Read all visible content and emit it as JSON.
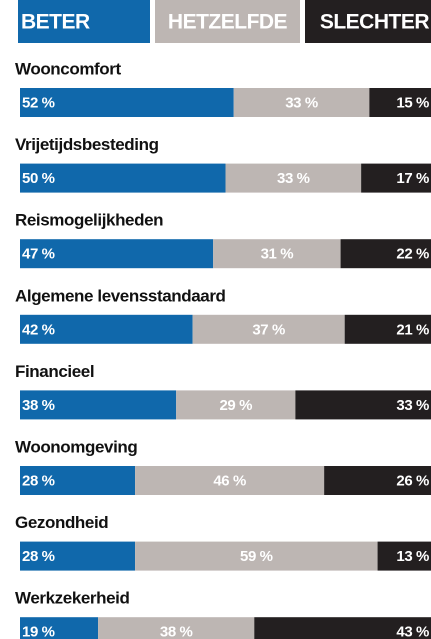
{
  "chart_data": {
    "type": "bar",
    "orientation": "horizontal",
    "stacked": true,
    "categories": [
      "Wooncomfort",
      "Vrijetijdsbesteding",
      "Reismogelijkheden",
      "Algemene levensstandaard",
      "Financieel",
      "Woonomgeving",
      "Gezondheid",
      "Werkzekerheid"
    ],
    "series": [
      {
        "name": "BETER",
        "color": "#1068ab",
        "values": [
          52,
          50,
          47,
          42,
          38,
          28,
          28,
          19
        ],
        "value_labels": [
          "52 %",
          "50 %",
          "47 %",
          "42 %",
          "38 %",
          "28 %",
          "28 %",
          "19 %"
        ]
      },
      {
        "name": "HETZELFDE",
        "color": "#bdb6b3",
        "values": [
          33,
          33,
          31,
          37,
          29,
          46,
          59,
          38
        ],
        "value_labels": [
          "33 %",
          "33 %",
          "31 %",
          "37 %",
          "29 %",
          "46 %",
          "59 %",
          "38 %"
        ]
      },
      {
        "name": "SLECHTER",
        "color": "#231f20",
        "values": [
          15,
          17,
          22,
          21,
          33,
          26,
          13,
          43
        ],
        "value_labels": [
          "15 %",
          "17 %",
          "22 %",
          "21 %",
          "33 %",
          "26 %",
          "13 %",
          "43 %"
        ]
      }
    ]
  }
}
